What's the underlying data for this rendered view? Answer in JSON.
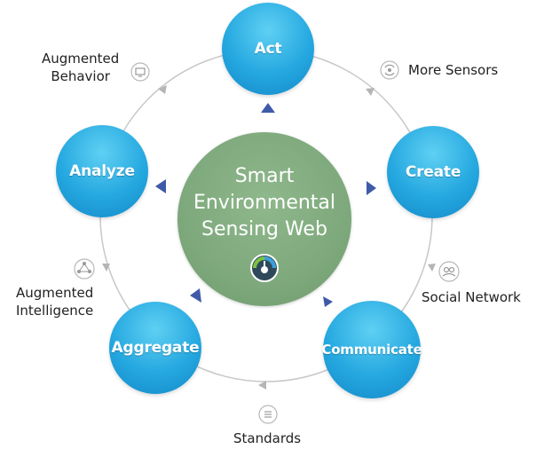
{
  "title_lines": [
    "Smart",
    "Environmental",
    "Sensing Web"
  ],
  "nodes": {
    "act": "Act",
    "create": "Create",
    "communicate": "Communicate",
    "aggregate": "Aggregate",
    "analyze": "Analyze"
  },
  "labels": {
    "more_sensors": "More Sensors",
    "social_network": "Social Network",
    "standards": "Standards",
    "augmented_intelligence": [
      "Augmented",
      "Intelligence"
    ],
    "augmented_behavior": [
      "Augmented",
      "Behavior"
    ]
  },
  "colors": {
    "node_blue": "#25a8e0",
    "center_green": "#7ea97c",
    "arrow_navy": "#3f5aa8",
    "ring_gray": "#c8c8c8"
  },
  "icons": [
    "monitor-icon",
    "sensor-waves-icon",
    "social-network-icon",
    "standards-icon",
    "network-nodes-icon",
    "gauge-logo-icon"
  ]
}
